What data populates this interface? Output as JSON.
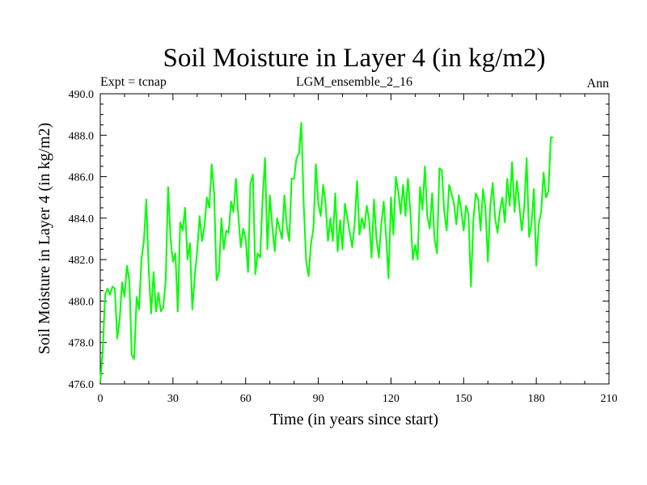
{
  "chart_data": {
    "type": "line",
    "title": "Soil Moisture in Layer 4 (in kg/m2)",
    "subtitle_left": "Expt = tcnap",
    "subtitle_center": "LGM_ensemble_2_16",
    "subtitle_right": "Ann",
    "xlabel": "Time (in years since start)",
    "ylabel": "Soil Moisture in Layer 4 (in kg/m2)",
    "xlim": [
      0,
      210
    ],
    "ylim": [
      476,
      490
    ],
    "xticks": [
      0,
      30,
      60,
      90,
      120,
      150,
      180,
      210
    ],
    "xtick_labels": [
      "0",
      "30",
      "60",
      "90",
      "120",
      "150",
      "180",
      "210"
    ],
    "yticks": [
      476,
      478,
      480,
      482,
      484,
      486,
      488,
      490
    ],
    "ytick_labels": [
      "476.0",
      "478.0",
      "480.0",
      "482.0",
      "484.0",
      "486.0",
      "488.0",
      "490.0"
    ],
    "series": [
      {
        "name": "Soil Moisture Layer 4",
        "color": "#00ff00",
        "x_start": 0,
        "x_step": 1,
        "values": [
          476.1,
          477.6,
          480.3,
          480.6,
          480.3,
          480.7,
          480.6,
          478.2,
          479.1,
          480.9,
          480.2,
          481.7,
          481.0,
          477.4,
          477.2,
          480.2,
          479.6,
          482.0,
          482.9,
          484.9,
          481.5,
          479.4,
          481.4,
          479.5,
          480.4,
          479.5,
          479.7,
          481.0,
          485.5,
          483.0,
          481.9,
          482.3,
          479.5,
          483.8,
          483.4,
          484.5,
          482.0,
          482.8,
          479.6,
          481.2,
          482.4,
          484.1,
          482.9,
          483.6,
          485.0,
          484.5,
          486.6,
          485.2,
          481.0,
          481.4,
          484.0,
          482.5,
          483.4,
          483.3,
          484.8,
          484.3,
          485.9,
          484.1,
          482.6,
          483.5,
          483.0,
          481.4,
          485.7,
          486.1,
          481.3,
          482.3,
          482.1,
          484.9,
          486.9,
          482.5,
          485.1,
          483.6,
          482.4,
          484.0,
          483.5,
          483.0,
          485.1,
          483.6,
          482.9,
          485.9,
          485.9,
          486.9,
          487.1,
          488.6,
          484.6,
          481.9,
          481.2,
          482.8,
          483.5,
          486.6,
          484.7,
          484.1,
          485.6,
          484.7,
          482.9,
          484.0,
          482.9,
          485.2,
          482.4,
          483.9,
          482.5,
          484.7,
          484.0,
          483.3,
          482.6,
          483.7,
          485.8,
          483.2,
          484.0,
          483.5,
          484.6,
          483.9,
          482.1,
          484.9,
          483.0,
          482.1,
          483.7,
          484.8,
          483.1,
          481.1,
          485.0,
          483.2,
          486.0,
          485.3,
          484.2,
          485.6,
          484.1,
          485.9,
          484.3,
          482.0,
          482.7,
          482.0,
          485.5,
          484.4,
          486.5,
          484.1,
          483.5,
          485.2,
          483.0,
          482.3,
          486.4,
          486.3,
          484.3,
          483.4,
          485.6,
          485.2,
          484.7,
          483.7,
          485.1,
          484.4,
          483.4,
          484.6,
          484.2,
          480.7,
          483.9,
          485.2,
          484.9,
          483.4,
          485.4,
          484.5,
          481.9,
          484.6,
          485.7,
          484.0,
          483.3,
          484.4,
          485.0,
          483.8,
          485.9,
          484.6,
          486.7,
          484.3,
          485.8,
          484.6,
          483.4,
          484.5,
          486.9,
          483.1,
          483.7,
          485.4,
          481.7,
          483.7,
          484.3,
          486.2,
          485.0,
          485.3,
          487.9,
          487.9
        ]
      }
    ],
    "grid": false,
    "legend": "none"
  }
}
